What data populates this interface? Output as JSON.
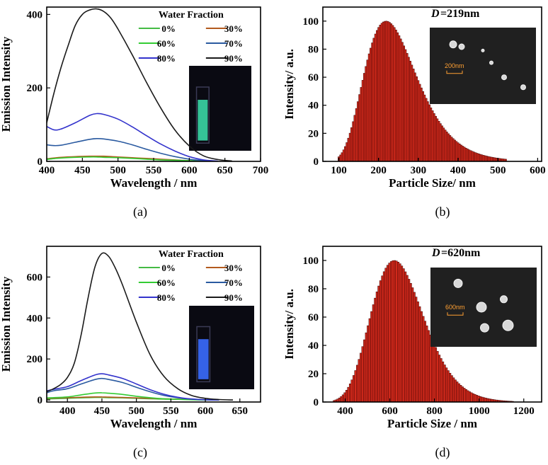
{
  "chart_data": [
    {
      "id": "a",
      "type": "line",
      "panel_label": "(a)",
      "xlabel": "Wavelength / nm",
      "ylabel": "Emission Intensity",
      "xlim": [
        400,
        700
      ],
      "ylim": [
        0,
        420
      ],
      "xticks": [
        "400",
        "450",
        "500",
        "550",
        "600",
        "650",
        "700"
      ],
      "yticks": [
        "0",
        "200",
        "400"
      ],
      "legend_title": "Water Fraction",
      "legend_placement": "top-right",
      "series": [
        {
          "name": "0%",
          "color": "#44bb44",
          "x": [
            400,
            420,
            440,
            460,
            470,
            480,
            500,
            520,
            540,
            560,
            580,
            600,
            620,
            640
          ],
          "y": [
            5,
            10,
            12,
            13,
            13,
            12,
            11,
            9,
            7,
            5,
            3,
            2,
            1,
            0
          ]
        },
        {
          "name": "30%",
          "color": "#b35a1e",
          "x": [
            400,
            420,
            440,
            460,
            470,
            480,
            500,
            520,
            540,
            560,
            580,
            600,
            620,
            640
          ],
          "y": [
            7,
            11,
            13,
            14,
            14,
            14,
            12,
            10,
            8,
            6,
            4,
            2,
            1,
            0
          ]
        },
        {
          "name": "60%",
          "color": "#33cc33",
          "x": [
            400,
            420,
            440,
            460,
            470,
            480,
            500,
            520,
            540,
            560,
            580,
            600,
            620,
            640
          ],
          "y": [
            6,
            9,
            11,
            12,
            12,
            11,
            10,
            8,
            6,
            4,
            3,
            2,
            1,
            0
          ]
        },
        {
          "name": "70%",
          "color": "#2a5aa0",
          "x": [
            400,
            410,
            420,
            440,
            460,
            470,
            480,
            500,
            520,
            540,
            560,
            580,
            600,
            620,
            640
          ],
          "y": [
            45,
            43,
            44,
            52,
            60,
            62,
            61,
            55,
            45,
            33,
            22,
            13,
            6,
            2,
            0
          ]
        },
        {
          "name": "80%",
          "color": "#3333cc",
          "x": [
            400,
            410,
            420,
            440,
            460,
            470,
            480,
            500,
            520,
            540,
            560,
            580,
            600,
            620,
            640
          ],
          "y": [
            95,
            86,
            88,
            105,
            125,
            130,
            128,
            115,
            94,
            70,
            47,
            28,
            13,
            4,
            1
          ]
        },
        {
          "name": "90%",
          "color": "#1a1a1a",
          "x": [
            400,
            410,
            420,
            430,
            440,
            450,
            460,
            470,
            480,
            490,
            500,
            520,
            540,
            560,
            580,
            600,
            620,
            640,
            660
          ],
          "y": [
            105,
            185,
            255,
            315,
            370,
            400,
            412,
            415,
            408,
            390,
            360,
            290,
            215,
            145,
            85,
            42,
            15,
            5,
            1
          ]
        }
      ]
    },
    {
      "id": "b",
      "type": "bar",
      "panel_label": "(b)",
      "xlabel": "Particle Size/ nm",
      "ylabel": "Intensity/ a.u.",
      "xlim": [
        60,
        610
      ],
      "ylim": [
        0,
        110
      ],
      "xticks": [
        "100",
        "200",
        "300",
        "400",
        "500",
        "600"
      ],
      "yticks": [
        "0",
        "20",
        "40",
        "60",
        "80",
        "100"
      ],
      "distribution": {
        "mode": 219,
        "sigma": 0.3,
        "x_from": 100,
        "x_to": 520,
        "bin": 4
      },
      "annotation": "=219nm",
      "annotation_symbol": "D",
      "inset_scale": "200nm"
    },
    {
      "id": "c",
      "type": "line",
      "panel_label": "(c)",
      "xlabel": "Wavelength / nm",
      "ylabel": "Emission Intensity",
      "xlim": [
        370,
        680
      ],
      "ylim": [
        -10,
        750
      ],
      "xticks": [
        "400",
        "450",
        "500",
        "550",
        "600",
        "650"
      ],
      "yticks": [
        "0",
        "200",
        "400",
        "600"
      ],
      "legend_title": "Water Fraction",
      "legend_placement": "top-right",
      "series": [
        {
          "name": "0%",
          "color": "#44bb44",
          "x": [
            370,
            400,
            420,
            440,
            450,
            460,
            480,
            500,
            520,
            540,
            560,
            580,
            600,
            620
          ],
          "y": [
            5,
            8,
            10,
            12,
            12,
            11,
            10,
            8,
            6,
            4,
            3,
            2,
            1,
            0
          ]
        },
        {
          "name": "30%",
          "color": "#b35a1e",
          "x": [
            370,
            400,
            420,
            440,
            450,
            460,
            480,
            500,
            520,
            540,
            560,
            580,
            600,
            620
          ],
          "y": [
            8,
            11,
            13,
            15,
            15,
            14,
            12,
            10,
            8,
            6,
            4,
            2,
            1,
            0
          ]
        },
        {
          "name": "60%",
          "color": "#33cc33",
          "x": [
            370,
            400,
            420,
            440,
            450,
            460,
            480,
            500,
            520,
            540,
            560,
            580,
            600,
            620
          ],
          "y": [
            10,
            15,
            25,
            34,
            35,
            33,
            27,
            18,
            11,
            6,
            3,
            1,
            0,
            0
          ]
        },
        {
          "name": "70%",
          "color": "#2a5aa0",
          "x": [
            370,
            380,
            400,
            420,
            440,
            450,
            460,
            480,
            500,
            520,
            540,
            560,
            580,
            600,
            620
          ],
          "y": [
            35,
            45,
            55,
            78,
            100,
            105,
            100,
            85,
            62,
            40,
            22,
            11,
            4,
            1,
            0
          ]
        },
        {
          "name": "80%",
          "color": "#3333cc",
          "x": [
            370,
            380,
            400,
            420,
            440,
            450,
            460,
            480,
            500,
            520,
            540,
            560,
            580,
            600,
            620
          ],
          "y": [
            45,
            52,
            65,
            95,
            122,
            128,
            122,
            105,
            78,
            50,
            28,
            13,
            5,
            1,
            0
          ]
        },
        {
          "name": "90%",
          "color": "#1a1a1a",
          "x": [
            370,
            380,
            390,
            400,
            410,
            420,
            430,
            440,
            450,
            460,
            470,
            480,
            500,
            520,
            540,
            560,
            580,
            600,
            620,
            640
          ],
          "y": [
            40,
            55,
            75,
            110,
            180,
            320,
            500,
            650,
            715,
            700,
            640,
            560,
            380,
            220,
            115,
            55,
            22,
            8,
            2,
            0
          ]
        }
      ]
    },
    {
      "id": "d",
      "type": "bar",
      "panel_label": "(d)",
      "xlabel": "Particle Size / nm",
      "ylabel": "Intensity/ a.u.",
      "xlim": [
        300,
        1280
      ],
      "ylim": [
        0,
        110
      ],
      "xticks": [
        "400",
        "600",
        "800",
        "1000",
        "1200"
      ],
      "yticks": [
        "0",
        "20",
        "40",
        "60",
        "80",
        "100"
      ],
      "distribution": {
        "mode": 620,
        "sigma": 0.19,
        "x_from": 350,
        "x_to": 1150,
        "bin": 8
      },
      "annotation": "=620nm",
      "annotation_symbol": "D",
      "inset_scale": "600nm"
    }
  ]
}
